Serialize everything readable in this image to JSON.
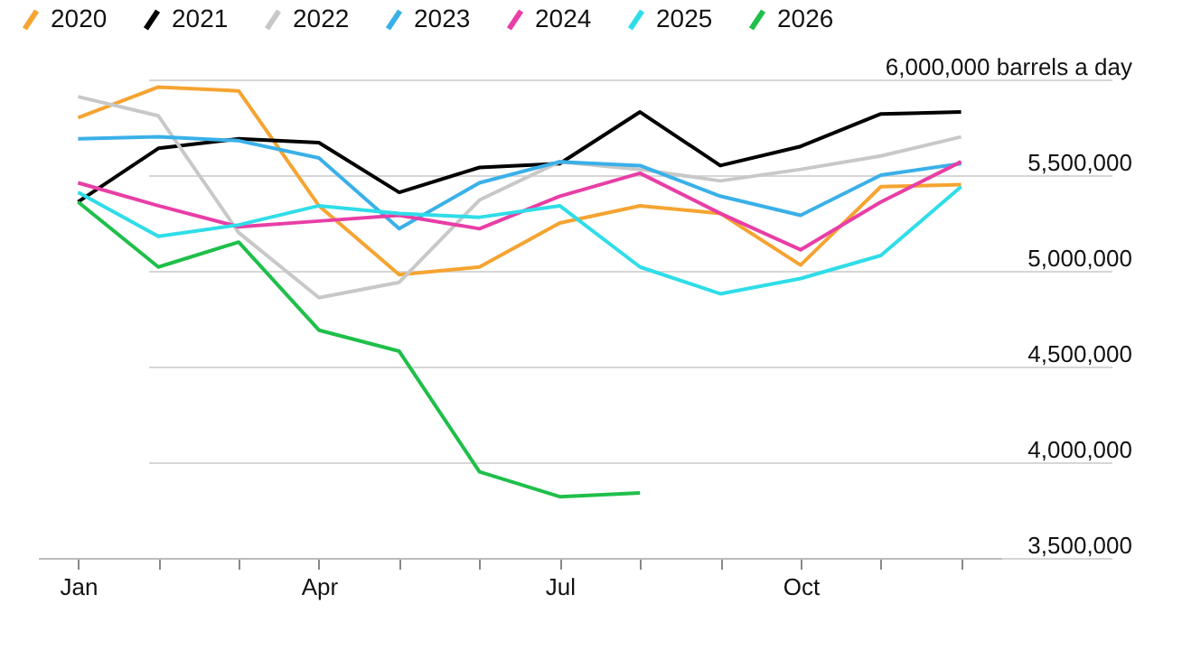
{
  "chart_data": {
    "type": "line",
    "categories": [
      "Jan",
      null,
      null,
      "Apr",
      null,
      null,
      "Jul",
      null,
      null,
      "Oct",
      null,
      null
    ],
    "ylim": [
      3500000,
      6000000
    ],
    "yticks": [
      {
        "value": 3500000,
        "label": "3,500,000"
      },
      {
        "value": 4000000,
        "label": "4,000,000"
      },
      {
        "value": 4500000,
        "label": "4,500,000"
      },
      {
        "value": 5000000,
        "label": "5,000,000"
      },
      {
        "value": 5500000,
        "label": "5,500,000"
      },
      {
        "value": 6000000,
        "label": "6,000,000 barrels a day"
      }
    ],
    "grid": "y",
    "legend": "top left",
    "marker": "none",
    "line_style": "solid",
    "series": [
      {
        "name": "2020",
        "color": "#f5a431",
        "values": [
          5800000,
          5960000,
          5940000,
          5340000,
          4980000,
          5020000,
          5250000,
          5340000,
          5300000,
          5030000,
          5440000,
          5450000
        ]
      },
      {
        "name": "2021",
        "color": "#000000",
        "values": [
          5360000,
          5640000,
          5690000,
          5670000,
          5410000,
          5540000,
          5560000,
          5830000,
          5550000,
          5650000,
          5820000,
          5830000
        ]
      },
      {
        "name": "2022",
        "color": "#c8c8c8",
        "values": [
          5910000,
          5810000,
          5200000,
          4860000,
          4940000,
          5370000,
          5570000,
          5530000,
          5470000,
          5530000,
          5600000,
          5700000
        ]
      },
      {
        "name": "2023",
        "color": "#3ab0e8",
        "values": [
          5690000,
          5700000,
          5680000,
          5590000,
          5220000,
          5460000,
          5570000,
          5550000,
          5390000,
          5290000,
          5500000,
          5560000
        ]
      },
      {
        "name": "2024",
        "color": "#e83ea5",
        "values": [
          5460000,
          5340000,
          5230000,
          5260000,
          5290000,
          5220000,
          5390000,
          5510000,
          5300000,
          5110000,
          5360000,
          5570000
        ]
      },
      {
        "name": "2025",
        "color": "#2fdde8",
        "values": [
          5410000,
          5180000,
          5240000,
          5340000,
          5300000,
          5280000,
          5340000,
          5020000,
          4880000,
          4960000,
          5080000,
          5440000
        ]
      },
      {
        "name": "2026",
        "color": "#1fbf4a",
        "values": [
          5360000,
          5020000,
          5150000,
          4690000,
          4580000,
          3950000,
          3820000,
          3840000,
          null,
          null,
          null,
          null
        ]
      }
    ]
  }
}
